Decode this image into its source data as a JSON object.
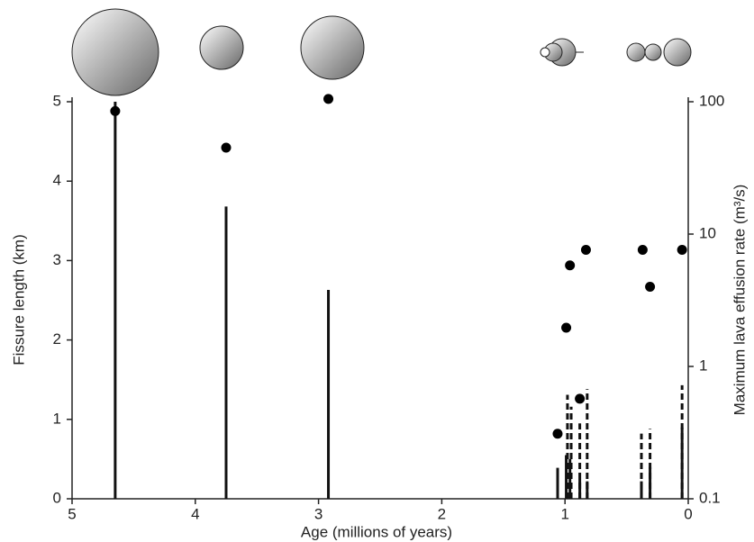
{
  "chart_data": {
    "type": "combo",
    "x_label": "Age (millions of years)",
    "y_label": "Fissure length (km)",
    "y2_label": "Maximum lava effusion rate (m³/s)",
    "xlim": [
      5,
      0
    ],
    "xticks": [
      5,
      4,
      3,
      2,
      1,
      0
    ],
    "ylim": [
      0,
      5
    ],
    "yticks": [
      0,
      1,
      2,
      3,
      4,
      5
    ],
    "y2lim": [
      0.1,
      100
    ],
    "y2ticks": [
      0.1,
      1,
      10,
      100
    ],
    "y2log": true,
    "series": [
      {
        "type": "stem",
        "color": "#111",
        "dashed": false,
        "x": [
          4.65,
          3.75,
          2.92,
          1.06,
          0.99,
          0.96,
          0.88,
          0.82,
          0.38,
          0.31,
          0.05
        ],
        "values": [
          5,
          3.68,
          2.63,
          0.39,
          0.55,
          0.5,
          0.25,
          0.22,
          0.22,
          0.4,
          0.9
        ]
      },
      {
        "type": "stem",
        "color": "#111",
        "dashed": true,
        "x": [
          0.98,
          0.95,
          0.88,
          0.82,
          0.38,
          0.31,
          0.05
        ],
        "values": [
          1.31,
          1.16,
          0.95,
          1.38,
          0.82,
          0.88,
          1.43
        ]
      },
      {
        "type": "scatter",
        "axis": "y2",
        "color": "#000",
        "x": [
          4.65,
          3.75,
          2.92,
          1.06,
          0.99,
          0.96,
          0.88,
          0.83,
          0.37,
          0.31,
          0.05
        ],
        "values": [
          85,
          45,
          105,
          0.31,
          1.96,
          5.8,
          0.57,
          7.6,
          7.6,
          4.0,
          7.6
        ]
      }
    ]
  }
}
